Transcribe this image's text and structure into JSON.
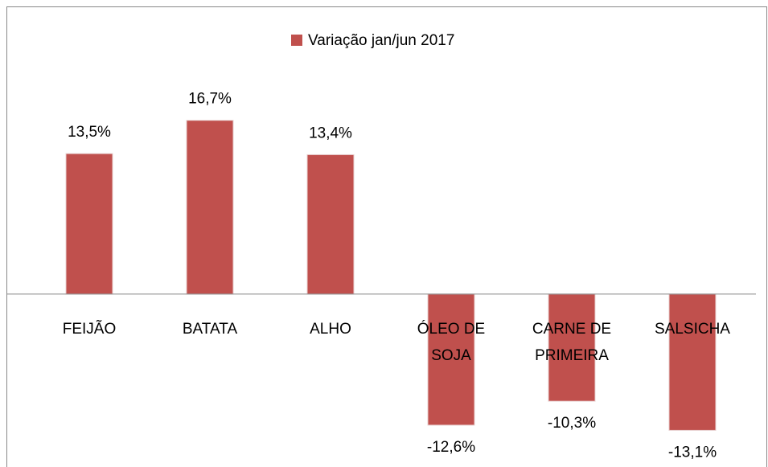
{
  "chart_data": {
    "type": "bar",
    "categories": [
      "FEIJÃO",
      "BATATA",
      "ALHO",
      "ÓLEO DE SOJA",
      "CARNE DE PRIMEIRA",
      "SALSICHA"
    ],
    "series": [
      {
        "name": "Variação jan/jun 2017",
        "color": "#c0504d",
        "values": [
          13.5,
          16.7,
          13.4,
          -12.6,
          -10.3,
          -13.1
        ],
        "value_labels": [
          "13,5%",
          "16,7%",
          "13,4%",
          "-12,6%",
          "-10,3%",
          "-13,1%"
        ]
      }
    ],
    "ylim": [
      -15,
      20
    ],
    "legend": "top"
  }
}
